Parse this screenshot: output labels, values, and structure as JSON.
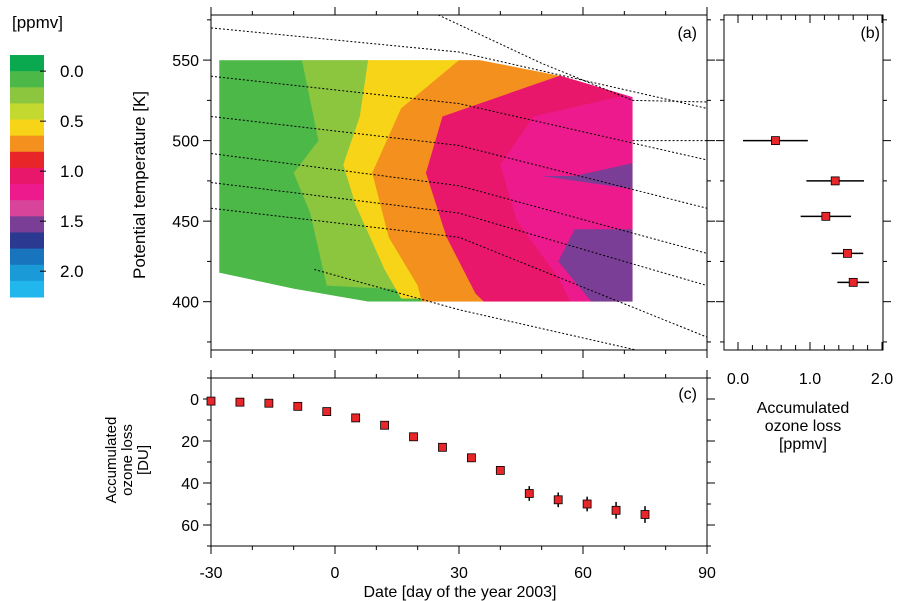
{
  "colorbar": {
    "unit_label": "[ppmv]",
    "tick_labels": [
      "0.0",
      "0.5",
      "1.0",
      "1.5",
      "2.0"
    ],
    "tick_values": [
      0.0,
      0.5,
      1.0,
      1.5,
      2.0
    ],
    "colors": [
      "#0aa84f",
      "#4cb848",
      "#8cc63f",
      "#c4d930",
      "#f7d417",
      "#f4901e",
      "#e8262a",
      "#e9176b",
      "#ec1a8c",
      "#d9449b",
      "#7a3e96",
      "#2b3990",
      "#1874bc",
      "#1a9ad6",
      "#22b7ec"
    ]
  },
  "chart_data": [
    {
      "panel": "(a)",
      "type": "heatmap",
      "ylabel": "Potential temperature [K]",
      "xlim": [
        -30,
        90
      ],
      "ylim": [
        370,
        578
      ],
      "yticks": [
        400,
        450,
        500,
        550
      ],
      "data_extent": {
        "x": [
          -28,
          72
        ],
        "top_theta": [
          [
            -28,
            550
          ],
          [
            35,
            550
          ],
          [
            55,
            540
          ],
          [
            72,
            527
          ]
        ],
        "bottom_theta": [
          [
            -28,
            418
          ],
          [
            -10,
            408
          ],
          [
            8,
            400
          ],
          [
            72,
            400
          ]
        ]
      },
      "color_boundaries": [
        {
          "loss": 0.0,
          "points": [
            [
              -28,
              550
            ],
            [
              -28,
              418
            ]
          ]
        },
        {
          "loss": 0.25,
          "points": [
            [
              -8,
              550
            ],
            [
              -4,
              500
            ],
            [
              -10,
              480
            ],
            [
              -6,
              455
            ],
            [
              -2,
              410
            ]
          ]
        },
        {
          "loss": 0.5,
          "points": [
            [
              8,
              550
            ],
            [
              6,
              515
            ],
            [
              2,
              485
            ],
            [
              5,
              460
            ],
            [
              12,
              420
            ],
            [
              16,
              402
            ]
          ]
        },
        {
          "loss": 0.75,
          "points": [
            [
              30,
              550
            ],
            [
              16,
              520
            ],
            [
              9,
              480
            ],
            [
              13,
              440
            ],
            [
              20,
              410
            ],
            [
              21,
              400
            ]
          ]
        },
        {
          "loss": 1.0,
          "points": [
            [
              54,
              540
            ],
            [
              26,
              515
            ],
            [
              22,
              480
            ],
            [
              27,
              440
            ],
            [
              34,
              405
            ],
            [
              36,
              400
            ]
          ]
        },
        {
          "loss": 1.25,
          "points": [
            [
              70,
              528
            ],
            [
              48,
              515
            ],
            [
              40,
              485
            ],
            [
              44,
              450
            ],
            [
              54,
              415
            ],
            [
              57,
              400
            ]
          ]
        },
        {
          "loss": 1.5,
          "points": [
            [
              72,
              486
            ],
            [
              58,
              478
            ],
            [
              50,
              478
            ],
            [
              72,
              470
            ]
          ]
        },
        {
          "loss": 1.5,
          "points": [
            [
              72,
              445
            ],
            [
              58,
              445
            ],
            [
              54,
              425
            ],
            [
              62,
              400
            ],
            [
              72,
              400
            ]
          ]
        }
      ],
      "dotted_lines": [
        [
          [
            -30,
            570
          ],
          [
            30,
            555
          ],
          [
            90,
            520
          ]
        ],
        [
          [
            -30,
            540
          ],
          [
            30,
            523
          ],
          [
            90,
            488
          ]
        ],
        [
          [
            -30,
            515
          ],
          [
            30,
            497
          ],
          [
            90,
            458
          ]
        ],
        [
          [
            -30,
            492
          ],
          [
            30,
            472
          ],
          [
            90,
            430
          ]
        ],
        [
          [
            -30,
            474
          ],
          [
            30,
            455
          ],
          [
            90,
            410
          ]
        ],
        [
          [
            -30,
            458
          ],
          [
            30,
            440
          ],
          [
            90,
            378
          ]
        ],
        [
          [
            25,
            578
          ],
          [
            50,
            548
          ],
          [
            72,
            525
          ],
          [
            90,
            524
          ]
        ],
        [
          [
            72,
            500
          ],
          [
            90,
            500
          ]
        ],
        [
          [
            -5,
            420
          ],
          [
            30,
            395
          ],
          [
            90,
            360
          ]
        ]
      ]
    },
    {
      "panel": "(b)",
      "type": "scatter",
      "xlabel": "Accumulated ozone loss [ppmv]",
      "xlim": [
        0.0,
        2.0
      ],
      "xticks": [
        0.0,
        1.0,
        2.0
      ],
      "xtick_labels": [
        "0.0",
        "1.0",
        "2.0"
      ],
      "points": [
        {
          "theta": 500,
          "loss": 0.52,
          "err": 0.45
        },
        {
          "theta": 475,
          "loss": 1.35,
          "err": 0.4
        },
        {
          "theta": 453,
          "loss": 1.22,
          "err": 0.35
        },
        {
          "theta": 430,
          "loss": 1.52,
          "err": 0.22
        },
        {
          "theta": 412,
          "loss": 1.6,
          "err": 0.22
        }
      ]
    },
    {
      "panel": "(c)",
      "type": "scatter",
      "xlabel": "Date [day of the year 2003]",
      "ylabel": "Accumulated ozone loss [DU]",
      "xlim": [
        -30,
        90
      ],
      "ylim": [
        70,
        -10
      ],
      "xticks": [
        -30,
        0,
        30,
        60,
        90
      ],
      "xtick_labels": [
        "-30",
        "0",
        "30",
        "60",
        "90"
      ],
      "yticks": [
        0,
        20,
        40,
        60
      ],
      "points": [
        {
          "x": -30,
          "y": 1,
          "err": 1
        },
        {
          "x": -23,
          "y": 1.5,
          "err": 1
        },
        {
          "x": -16,
          "y": 2,
          "err": 1
        },
        {
          "x": -9,
          "y": 3.5,
          "err": 1
        },
        {
          "x": -2,
          "y": 6,
          "err": 1
        },
        {
          "x": 5,
          "y": 9,
          "err": 1.2
        },
        {
          "x": 12,
          "y": 12.5,
          "err": 1.2
        },
        {
          "x": 19,
          "y": 18,
          "err": 1.2
        },
        {
          "x": 26,
          "y": 23,
          "err": 1.5
        },
        {
          "x": 33,
          "y": 28,
          "err": 1.5
        },
        {
          "x": 40,
          "y": 34,
          "err": 2
        },
        {
          "x": 47,
          "y": 45,
          "err": 3.5
        },
        {
          "x": 54,
          "y": 48,
          "err": 3.5
        },
        {
          "x": 61,
          "y": 50,
          "err": 3.5
        },
        {
          "x": 68,
          "y": 53,
          "err": 4
        },
        {
          "x": 75,
          "y": 55,
          "err": 4
        }
      ]
    }
  ],
  "ylabel_b_lines": [
    "Accumulated",
    "ozone loss",
    "[ppmv]"
  ],
  "ylabel_c_lines": [
    "Accumulated",
    "ozone loss",
    "[DU]"
  ],
  "marker_color": "#e8262a"
}
